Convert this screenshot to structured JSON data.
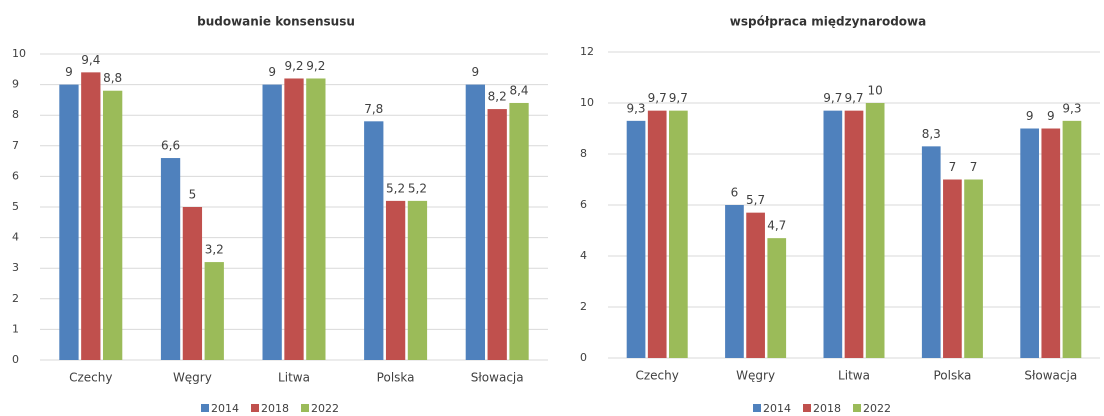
{
  "chart_data": [
    {
      "type": "bar",
      "title": "budowanie konsensusu",
      "categories": [
        "Czechy",
        "Węgry",
        "Litwa",
        "Polska",
        "Słowacja"
      ],
      "series": [
        {
          "name": "2014",
          "color": "#4f81bd",
          "values": [
            9,
            6.6,
            9,
            7.8,
            9
          ],
          "value_labels": [
            "9",
            "6,6",
            "9",
            "7,8",
            "9"
          ]
        },
        {
          "name": "2018",
          "color": "#c0504d",
          "values": [
            9.4,
            5,
            9.2,
            5.2,
            8.2
          ],
          "value_labels": [
            "9,4",
            "5",
            "9,2",
            "5,2",
            "8,2"
          ]
        },
        {
          "name": "2022",
          "color": "#9bbb59",
          "values": [
            8.8,
            3.2,
            9.2,
            5.2,
            8.4
          ],
          "value_labels": [
            "8,8",
            "3,2",
            "9,2",
            "5,2",
            "8,4"
          ]
        }
      ],
      "ylim": [
        0,
        10
      ],
      "yticks": [
        0,
        1,
        2,
        3,
        4,
        5,
        6,
        7,
        8,
        9,
        10
      ],
      "grid": true,
      "legend": "bottom"
    },
    {
      "type": "bar",
      "title": "współpraca międzynarodowa",
      "categories": [
        "Czechy",
        "Węgry",
        "Litwa",
        "Polska",
        "Słowacja"
      ],
      "series": [
        {
          "name": "2014",
          "color": "#4f81bd",
          "values": [
            9.3,
            6,
            9.7,
            8.3,
            9
          ],
          "value_labels": [
            "9,3",
            "6",
            "9,7",
            "8,3",
            "9"
          ]
        },
        {
          "name": "2018",
          "color": "#c0504d",
          "values": [
            9.7,
            5.7,
            9.7,
            7,
            9
          ],
          "value_labels": [
            "9,7",
            "5,7",
            "9,7",
            "7",
            "9"
          ]
        },
        {
          "name": "2022",
          "color": "#9bbb59",
          "values": [
            9.7,
            4.7,
            10,
            7,
            9.3
          ],
          "value_labels": [
            "9,7",
            "4,7",
            "10",
            "7",
            "9,3"
          ]
        }
      ],
      "ylim": [
        0,
        12
      ],
      "yticks": [
        0,
        2,
        4,
        6,
        8,
        10,
        12
      ],
      "grid": true,
      "legend": "bottom"
    }
  ]
}
